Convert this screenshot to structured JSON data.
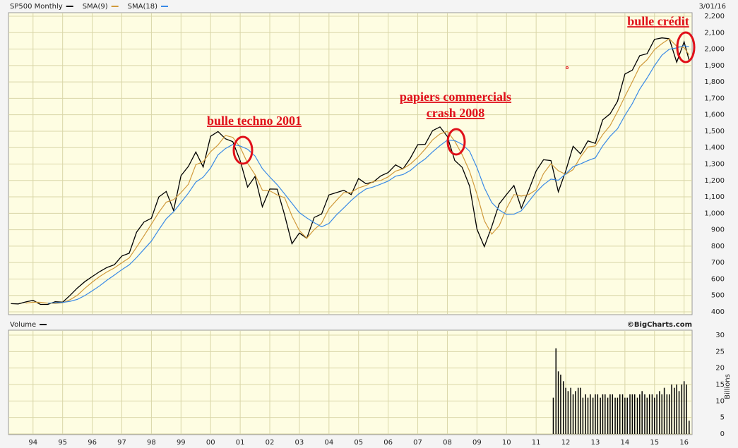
{
  "chart_data": [
    {
      "type": "line",
      "date": "3/01/16",
      "annotations": [
        "bulle techno 2001",
        "papiers commercials",
        "crash 2008",
        "bulle crédit"
      ],
      "x": [
        1993.25,
        1993.5,
        1993.75,
        1994,
        1994.25,
        1994.5,
        1994.75,
        1995,
        1995.25,
        1995.5,
        1995.75,
        1996,
        1996.25,
        1996.5,
        1996.75,
        1997,
        1997.25,
        1997.5,
        1997.75,
        1998,
        1998.25,
        1998.5,
        1998.75,
        1999,
        1999.25,
        1999.5,
        1999.75,
        2000,
        2000.25,
        2000.5,
        2000.75,
        2001,
        2001.25,
        2001.5,
        2001.75,
        2002,
        2002.25,
        2002.5,
        2002.75,
        2003,
        2003.25,
        2003.5,
        2003.75,
        2004,
        2004.25,
        2004.5,
        2004.75,
        2005,
        2005.25,
        2005.5,
        2005.75,
        2006,
        2006.25,
        2006.5,
        2006.75,
        2007,
        2007.25,
        2007.5,
        2007.75,
        2008,
        2008.25,
        2008.5,
        2008.75,
        2009,
        2009.25,
        2009.5,
        2009.75,
        2010,
        2010.25,
        2010.5,
        2010.75,
        2011,
        2011.25,
        2011.5,
        2011.75,
        2012,
        2012.25,
        2012.5,
        2012.75,
        2013,
        2013.25,
        2013.5,
        2013.75,
        2014,
        2014.25,
        2014.5,
        2014.75,
        2015,
        2015.25,
        2015.5,
        2015.75,
        2016,
        2016.17
      ],
      "series": [
        {
          "name": "SP500 Monthly",
          "color": "#000000",
          "values": [
            450,
            448,
            460,
            470,
            445,
            445,
            462,
            459,
            500,
            545,
            584,
            615,
            645,
            670,
            687,
            740,
            757,
            885,
            947,
            970,
            1100,
            1133,
            1017,
            1229,
            1286,
            1373,
            1282,
            1469,
            1498,
            1454,
            1436,
            1320,
            1160,
            1224,
            1040,
            1148,
            1147,
            990,
            815,
            880,
            848,
            975,
            996,
            1112,
            1126,
            1140,
            1114,
            1212,
            1180,
            1191,
            1228,
            1248,
            1295,
            1270,
            1336,
            1418,
            1420,
            1503,
            1526,
            1468,
            1322,
            1280,
            1166,
            903,
            797,
            919,
            1057,
            1115,
            1169,
            1031,
            1141,
            1258,
            1326,
            1321,
            1131,
            1258,
            1408,
            1362,
            1441,
            1426,
            1569,
            1606,
            1682,
            1848,
            1872,
            1960,
            1972,
            2059,
            2068,
            2063,
            1920,
            2044,
            1932
          ]
        },
        {
          "name": "SMA(9)",
          "color": "#d09a3c",
          "values": [
            null,
            null,
            453,
            459,
            458,
            453,
            451,
            455,
            474,
            501,
            543,
            581,
            615,
            643,
            667,
            699,
            728,
            794,
            863,
            934,
            1006,
            1068,
            1083,
            1126,
            1177,
            1296,
            1314,
            1375,
            1416,
            1474,
            1463,
            1403,
            1305,
            1235,
            1141,
            1137,
            1112,
            1095,
            984,
            895,
            848,
            901,
            940,
            1028,
            1078,
            1126,
            1127,
            1155,
            1169,
            1194,
            1200,
            1222,
            1257,
            1271,
            1300,
            1341,
            1391,
            1447,
            1483,
            1499,
            1439,
            1357,
            1256,
            1116,
            955,
            873,
            924,
            1030,
            1114,
            1105,
            1114,
            1143,
            1242,
            1302,
            1259,
            1237,
            1266,
            1343,
            1404,
            1410,
            1479,
            1534,
            1619,
            1712,
            1801,
            1893,
            1935,
            1997,
            2033,
            2063,
            2017,
            2009,
            1965
          ]
        },
        {
          "name": "SMA(18)",
          "color": "#3a8ae6",
          "values": [
            null,
            null,
            null,
            null,
            null,
            453,
            455,
            457,
            464,
            476,
            499,
            528,
            558,
            593,
            624,
            657,
            686,
            731,
            781,
            831,
            900,
            966,
            1009,
            1066,
            1123,
            1190,
            1220,
            1276,
            1356,
            1394,
            1419,
            1410,
            1390,
            1349,
            1272,
            1221,
            1174,
            1118,
            1061,
            1004,
            972,
            943,
            918,
            938,
            990,
            1033,
            1078,
            1117,
            1148,
            1161,
            1178,
            1196,
            1226,
            1236,
            1261,
            1299,
            1331,
            1374,
            1412,
            1445,
            1443,
            1420,
            1378,
            1278,
            1156,
            1065,
            1020,
            993,
            994,
            1015,
            1072,
            1129,
            1174,
            1208,
            1201,
            1240,
            1284,
            1301,
            1321,
            1338,
            1411,
            1469,
            1515,
            1596,
            1668,
            1756,
            1824,
            1899,
            1963,
            1999,
            2007,
            2021,
            2014
          ]
        }
      ],
      "xlim": [
        1993.17,
        2016.27
      ],
      "ylim": [
        400,
        2200
      ],
      "yticks": [
        400,
        500,
        600,
        700,
        800,
        900,
        {
          "value": 1000,
          "label": "1,000"
        },
        {
          "value": 1100,
          "label": "1,100"
        },
        {
          "value": 1200,
          "label": "1,200"
        },
        {
          "value": 1300,
          "label": "1,300"
        },
        {
          "value": 1400,
          "label": "1,400"
        },
        {
          "value": 1500,
          "label": "1,500"
        },
        {
          "value": 1600,
          "label": "1,600"
        },
        {
          "value": 1700,
          "label": "1,700"
        },
        {
          "value": 1800,
          "label": "1,800"
        },
        {
          "value": 1900,
          "label": "1,900"
        },
        {
          "value": 2000,
          "label": "2,000"
        },
        {
          "value": 2100,
          "label": "2,100"
        },
        {
          "value": 2200,
          "label": "2,200"
        }
      ],
      "grid": true
    },
    {
      "type": "bar",
      "title": "Volume",
      "source": "©BigCharts.com",
      "y_label": "Billions",
      "color": "#000000",
      "x": [
        2011.58,
        2011.67,
        2011.75,
        2011.83,
        2011.92,
        2012,
        2012.08,
        2012.17,
        2012.25,
        2012.33,
        2012.42,
        2012.5,
        2012.58,
        2012.67,
        2012.75,
        2012.83,
        2012.92,
        2013,
        2013.08,
        2013.17,
        2013.25,
        2013.33,
        2013.42,
        2013.5,
        2013.58,
        2013.67,
        2013.75,
        2013.83,
        2013.92,
        2014,
        2014.08,
        2014.17,
        2014.25,
        2014.33,
        2014.42,
        2014.5,
        2014.58,
        2014.67,
        2014.75,
        2014.83,
        2014.92,
        2015,
        2015.08,
        2015.17,
        2015.25,
        2015.33,
        2015.42,
        2015.5,
        2015.58,
        2015.67,
        2015.75,
        2015.83,
        2015.92,
        2016,
        2016.08,
        2016.17
      ],
      "values": [
        11,
        26,
        19,
        18,
        16,
        14,
        13,
        14,
        12,
        13,
        14,
        14,
        11,
        12,
        11,
        12,
        11,
        12,
        12,
        11,
        12,
        12,
        11,
        12,
        12,
        11,
        11,
        12,
        12,
        11,
        11,
        12,
        12,
        12,
        11,
        12,
        13,
        12,
        11,
        12,
        12,
        11,
        12,
        13,
        12,
        14,
        12,
        12,
        15,
        14,
        15,
        13,
        15,
        16,
        15,
        4
      ],
      "xlim": [
        1993.17,
        2016.27
      ],
      "ylim": [
        0,
        30
      ],
      "yticks": [
        0,
        5,
        10,
        15,
        20,
        25,
        30
      ],
      "xticks": [
        {
          "value": 1994,
          "label": "94"
        },
        {
          "value": 1995,
          "label": "95"
        },
        {
          "value": 1996,
          "label": "96"
        },
        {
          "value": 1997,
          "label": "97"
        },
        {
          "value": 1998,
          "label": "98"
        },
        {
          "value": 1999,
          "label": "99"
        },
        {
          "value": 2000,
          "label": "00"
        },
        {
          "value": 2001,
          "label": "01"
        },
        {
          "value": 2002,
          "label": "02"
        },
        {
          "value": 2003,
          "label": "03"
        },
        {
          "value": 2004,
          "label": "04"
        },
        {
          "value": 2005,
          "label": "05"
        },
        {
          "value": 2006,
          "label": "06"
        },
        {
          "value": 2007,
          "label": "07"
        },
        {
          "value": 2008,
          "label": "08"
        },
        {
          "value": 2009,
          "label": "09"
        },
        {
          "value": 2010,
          "label": "10"
        },
        {
          "value": 2011,
          "label": "11"
        },
        {
          "value": 2012,
          "label": "12"
        },
        {
          "value": 2013,
          "label": "13"
        },
        {
          "value": 2014,
          "label": "14"
        },
        {
          "value": 2015,
          "label": "15"
        },
        {
          "value": 2016,
          "label": "16"
        }
      ],
      "grid": true
    }
  ]
}
